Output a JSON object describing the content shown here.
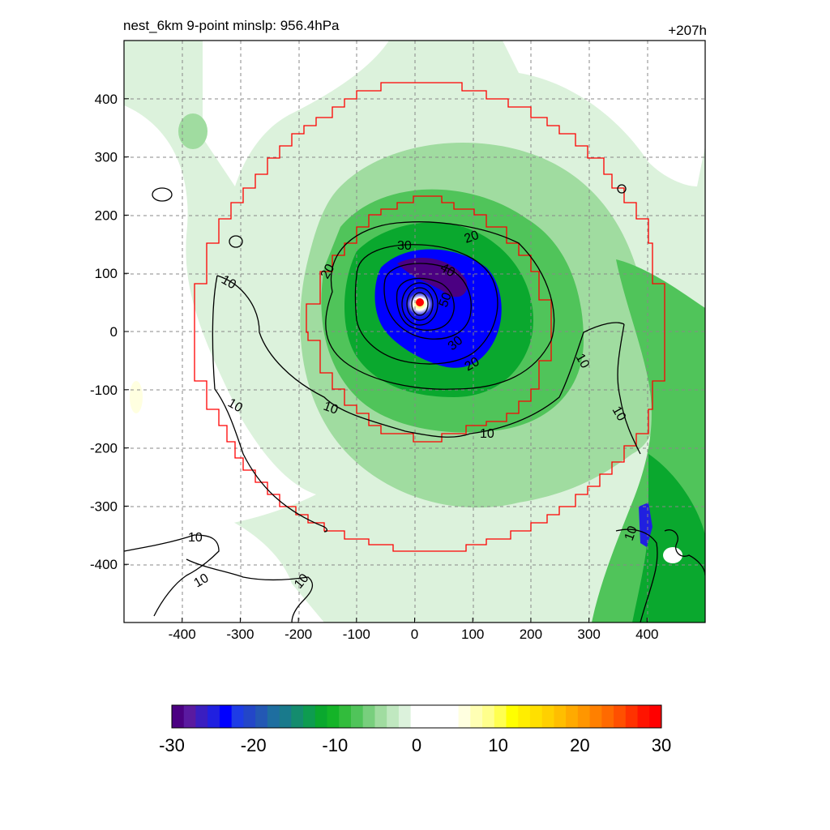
{
  "header": {
    "left_title": "nest_6km  9-point minslp: 956.4hPa",
    "right_title": "+207h"
  },
  "chart_data": {
    "type": "heatmap",
    "title": "nest_6km  9-point minslp: 956.4hPa",
    "time_label": "+207h",
    "xlim": [
      -500,
      500
    ],
    "ylim": [
      -500,
      500
    ],
    "x_ticks": [
      -400,
      -300,
      -200,
      -100,
      0,
      100,
      200,
      300,
      400
    ],
    "y_ticks": [
      400,
      300,
      200,
      100,
      0,
      -100,
      -200,
      -300,
      -400
    ],
    "grid": true,
    "colorbar": {
      "min": -30,
      "max": 30,
      "ticks": [
        -30,
        -20,
        -10,
        0,
        10,
        20,
        30
      ],
      "colors": [
        "#4b0082",
        "#5a1aa0",
        "#3a1ec0",
        "#2020e0",
        "#0000ff",
        "#1e3ce6",
        "#2346c8",
        "#2358b4",
        "#1e6ea0",
        "#197a8c",
        "#148c6e",
        "#0e9c50",
        "#0aa82e",
        "#14b428",
        "#32bc3c",
        "#50c45a",
        "#78cf7d",
        "#a0dca0",
        "#c0e8c0",
        "#dcf2dc",
        "#ffffff",
        "#ffffff",
        "#ffffff",
        "#ffffff",
        "#ffffe0",
        "#ffffb4",
        "#ffff8c",
        "#ffff50",
        "#ffff00",
        "#ffee00",
        "#ffe000",
        "#ffd000",
        "#ffbe00",
        "#ffaa00",
        "#ff9600",
        "#ff8000",
        "#ff6a00",
        "#ff5000",
        "#ff3200",
        "#ff1400",
        "#ff0000"
      ]
    },
    "contour_labels": [
      "10",
      "10",
      "10",
      "10",
      "10",
      "10",
      "10",
      "10",
      "10",
      "10",
      "20",
      "20",
      "20",
      "30",
      "30",
      "40",
      "50"
    ],
    "center": [
      10,
      50
    ]
  }
}
